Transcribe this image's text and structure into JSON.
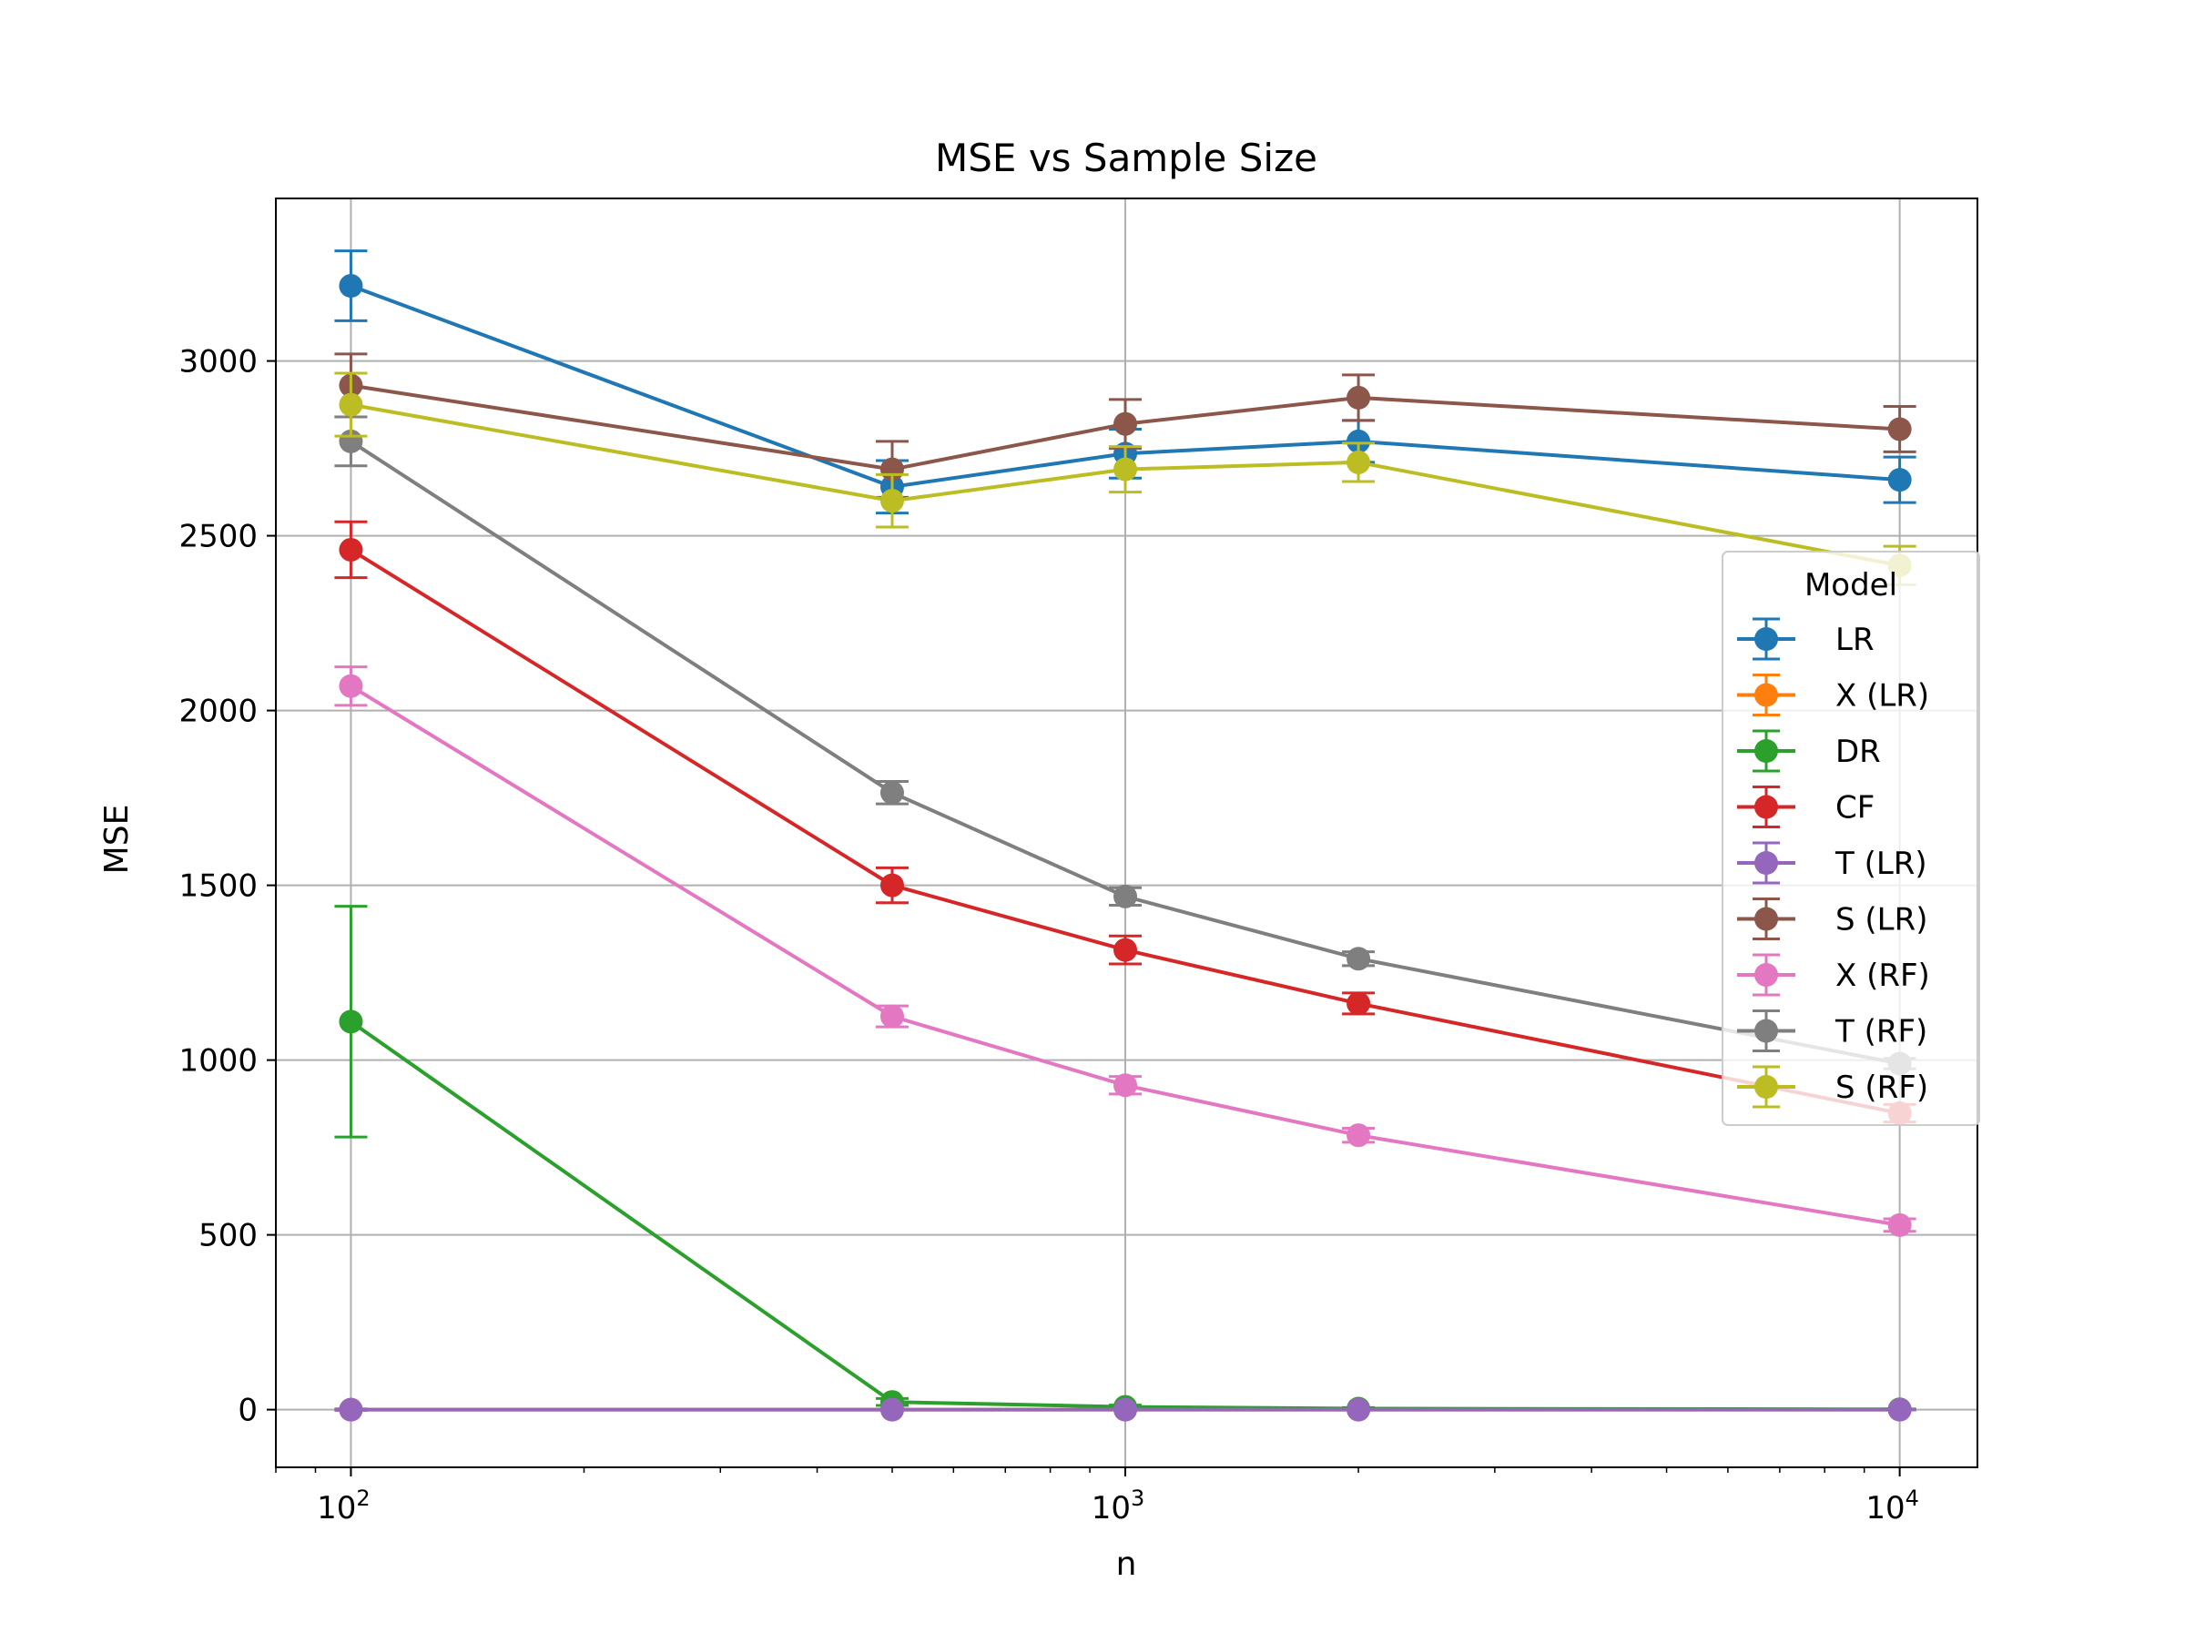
{
  "chart_data": {
    "type": "line",
    "title": "MSE vs Sample Size",
    "xlabel": "n",
    "ylabel": "MSE",
    "x_scale": "log",
    "xlim": [
      80,
      12600
    ],
    "ylim": [
      -165,
      3465
    ],
    "grid": true,
    "legend": {
      "title": "Model",
      "placement": "right"
    },
    "x": [
      100,
      500,
      1000,
      2000,
      10000
    ],
    "x_ticks": [
      {
        "value": 100,
        "base": "10",
        "exp": "2"
      },
      {
        "value": 1000,
        "base": "10",
        "exp": "3"
      },
      {
        "value": 10000,
        "base": "10",
        "exp": "4"
      }
    ],
    "y_ticks": [
      {
        "value": 0,
        "label": "0"
      },
      {
        "value": 500,
        "label": "500"
      },
      {
        "value": 1000,
        "label": "1000"
      },
      {
        "value": 1500,
        "label": "1500"
      },
      {
        "value": 2000,
        "label": "2000"
      },
      {
        "value": 2500,
        "label": "2500"
      },
      {
        "value": 3000,
        "label": "3000"
      }
    ],
    "series": [
      {
        "name": "LR",
        "color": "#1f77b4",
        "values": [
          3215,
          2640,
          2735,
          2770,
          2660
        ],
        "errors": [
          100,
          75,
          70,
          60,
          65
        ]
      },
      {
        "name": "X (LR)",
        "color": "#ff7f0e",
        "values": [
          0,
          0,
          0,
          0,
          0
        ],
        "errors": [
          2,
          1,
          1,
          1,
          1
        ]
      },
      {
        "name": "DR",
        "color": "#2ca02c",
        "values": [
          1110,
          22,
          8,
          3,
          1
        ],
        "errors": [
          330,
          10,
          5,
          3,
          1
        ]
      },
      {
        "name": "CF",
        "color": "#d62728",
        "values": [
          2460,
          1500,
          1315,
          1162,
          848
        ],
        "errors": [
          80,
          50,
          40,
          30,
          25
        ]
      },
      {
        "name": "T (LR)",
        "color": "#9467bd",
        "values": [
          0,
          0,
          0,
          0,
          0
        ],
        "errors": [
          2,
          1,
          1,
          1,
          1
        ]
      },
      {
        "name": "S (LR)",
        "color": "#8c564b",
        "values": [
          2930,
          2690,
          2820,
          2895,
          2805
        ],
        "errors": [
          90,
          80,
          70,
          65,
          65
        ]
      },
      {
        "name": "X (RF)",
        "color": "#e377c2",
        "values": [
          2070,
          1125,
          928,
          785,
          528
        ],
        "errors": [
          55,
          30,
          25,
          20,
          18
        ]
      },
      {
        "name": "T (RF)",
        "color": "#7f7f7f",
        "values": [
          2770,
          1765,
          1468,
          1290,
          990
        ],
        "errors": [
          70,
          32,
          25,
          20,
          15
        ]
      },
      {
        "name": "S (RF)",
        "color": "#bcbd22",
        "values": [
          2875,
          2600,
          2690,
          2710,
          2415
        ],
        "errors": [
          90,
          75,
          65,
          55,
          55
        ]
      }
    ]
  }
}
